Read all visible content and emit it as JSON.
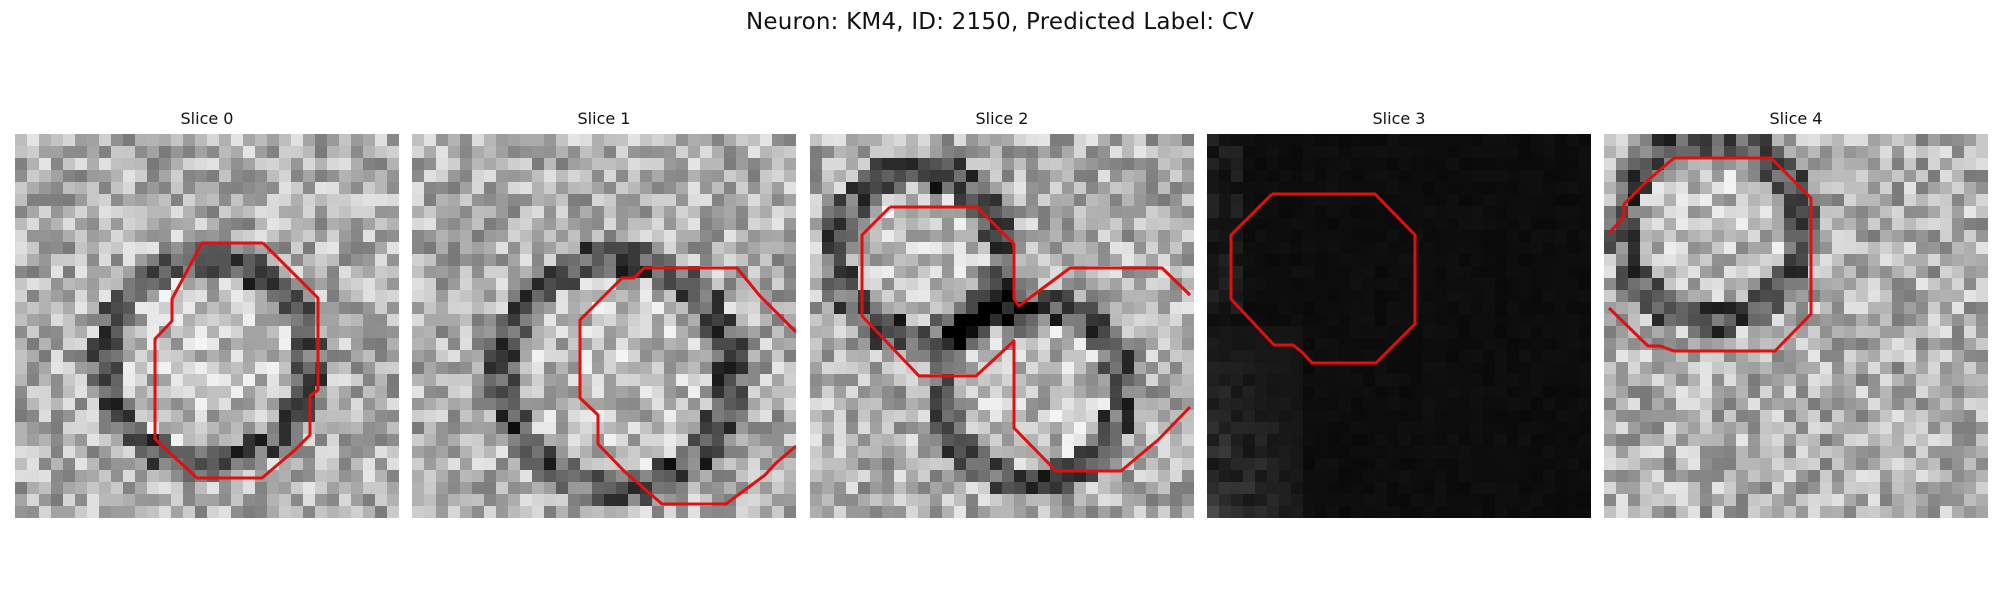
{
  "figure": {
    "title": "Neuron: KM4, ID: 2150, Predicted Label: CV"
  },
  "panels": [
    {
      "title": "Slice 0",
      "dark": false
    },
    {
      "title": "Slice 1",
      "dark": false
    },
    {
      "title": "Slice 2",
      "dark": false
    },
    {
      "title": "Slice 3",
      "dark": true
    },
    {
      "title": "Slice 4",
      "dark": false
    }
  ],
  "colors": {
    "contour": "#e01010",
    "background": "#ffffff"
  }
}
